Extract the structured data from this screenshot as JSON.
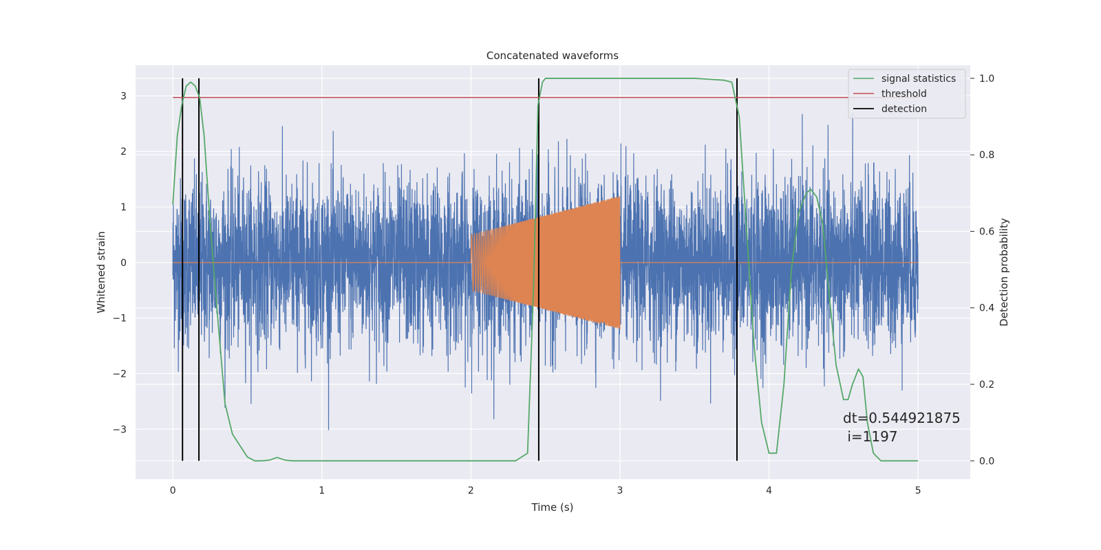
{
  "chart_data": {
    "type": "line",
    "title": "Concatenated waveforms",
    "xlabel": "Time (s)",
    "ylabel": "Whitened strain",
    "y2label": "Detection probability",
    "xlim": [
      -0.25,
      5.35
    ],
    "ylim": [
      -3.9,
      3.55
    ],
    "y2lim": [
      -0.048,
      1.034
    ],
    "xticks": [
      0,
      1,
      2,
      3,
      4,
      5
    ],
    "xtick_labels": [
      "0",
      "1",
      "2",
      "3",
      "4",
      "5"
    ],
    "yticks": [
      -3,
      -2,
      -1,
      0,
      1,
      2,
      3
    ],
    "ytick_labels": [
      "−3",
      "−2",
      "−1",
      "0",
      "1",
      "2",
      "3"
    ],
    "y2ticks": [
      0.0,
      0.2,
      0.4,
      0.6,
      0.8,
      1.0
    ],
    "y2tick_labels": [
      "0.0",
      "0.2",
      "0.4",
      "0.6",
      "0.8",
      "1.0"
    ],
    "grid": true,
    "legend_position": "top-right",
    "background": "#EAEAF2",
    "series": [
      {
        "name": "",
        "axis": "left",
        "color": "#4C72B0",
        "kind": "noise",
        "x_range": [
          0,
          5
        ],
        "approx_std": 0.75
      },
      {
        "name": "",
        "axis": "left",
        "color": "#DD8452",
        "kind": "chirp",
        "x_range": [
          0,
          5
        ],
        "chirp_start": 2.0,
        "chirp_end": 3.0,
        "amplitude_start": 0.5,
        "amplitude_end": 1.2
      },
      {
        "name": "signal statistics",
        "axis": "right",
        "color": "#55A868",
        "x": [
          0,
          0.03,
          0.06,
          0.09,
          0.12,
          0.15,
          0.18,
          0.21,
          0.25,
          0.3,
          0.35,
          0.4,
          0.45,
          0.5,
          0.55,
          0.6,
          0.65,
          0.7,
          0.75,
          0.8,
          1.0,
          1.5,
          2.0,
          2.3,
          2.38,
          2.42,
          2.45,
          2.48,
          2.5,
          2.6,
          3.0,
          3.5,
          3.7,
          3.75,
          3.8,
          3.85,
          3.9,
          3.95,
          4.0,
          4.05,
          4.1,
          4.15,
          4.2,
          4.25,
          4.28,
          4.32,
          4.36,
          4.4,
          4.45,
          4.5,
          4.53,
          4.56,
          4.6,
          4.63,
          4.66,
          4.7,
          4.75,
          4.85,
          5.0
        ],
        "y": [
          0.67,
          0.85,
          0.93,
          0.98,
          0.99,
          0.98,
          0.95,
          0.85,
          0.62,
          0.38,
          0.15,
          0.07,
          0.04,
          0.01,
          0.0,
          0.0,
          0.002,
          0.009,
          0.002,
          0.0,
          0.0,
          0.0,
          0.0,
          0.0,
          0.02,
          0.45,
          0.93,
          0.99,
          1.0,
          1.0,
          1.0,
          1.0,
          0.995,
          0.99,
          0.9,
          0.6,
          0.3,
          0.1,
          0.02,
          0.02,
          0.2,
          0.5,
          0.65,
          0.7,
          0.71,
          0.69,
          0.62,
          0.45,
          0.25,
          0.16,
          0.16,
          0.2,
          0.24,
          0.22,
          0.1,
          0.02,
          0.0,
          0.0,
          0.0
        ]
      },
      {
        "name": "threshold",
        "axis": "right",
        "color": "#C44E52",
        "x": [
          0,
          5
        ],
        "y": [
          0.95,
          0.95
        ]
      },
      {
        "name": "detection",
        "axis": "right",
        "color": "#000000",
        "x": [
          0.065,
          0.175,
          2.455,
          3.785
        ],
        "y_range": [
          0,
          1.0
        ],
        "kind": "vlines"
      }
    ],
    "annotation": {
      "lines": [
        "dt=0.544921875",
        " i=1197"
      ],
      "x": 4.5,
      "y": 0.1
    }
  }
}
